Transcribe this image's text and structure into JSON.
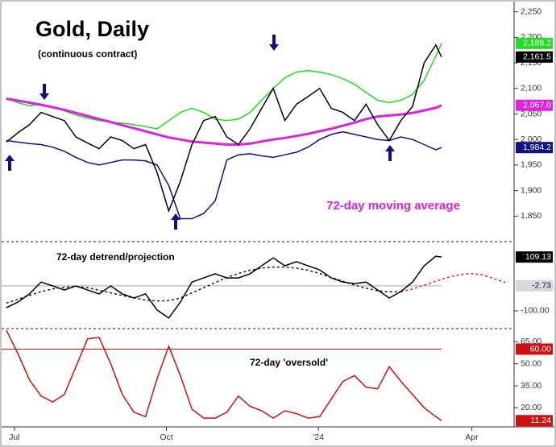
{
  "chart_data": {
    "type": "line",
    "title": "Gold, Daily",
    "subtitle": "(continuous contract)",
    "x": [
      0,
      1,
      2,
      3,
      4,
      5,
      6,
      7,
      8,
      9,
      10,
      11,
      12,
      13,
      14,
      15,
      16,
      17,
      18,
      19,
      20,
      21,
      22,
      23,
      24,
      25,
      26,
      27,
      28,
      29,
      30,
      31,
      32,
      33,
      34,
      35,
      36,
      37,
      37.5
    ],
    "xlim": [
      -0.4,
      43.75
    ],
    "xticks": [
      {
        "value": 0.7,
        "label": "Jul"
      },
      {
        "value": 13.8,
        "label": "Oct"
      },
      {
        "value": 26.9,
        "label": "'24"
      },
      {
        "value": 40.1,
        "label": "Apr"
      }
    ],
    "panels": [
      {
        "ylim": [
          1800,
          2270
        ],
        "yticks": [
          {
            "value": 1850,
            "label": "1,850"
          },
          {
            "value": 1900,
            "label": "1,900"
          },
          {
            "value": 1950,
            "label": "1,950"
          },
          {
            "value": 2000,
            "label": "2,000"
          },
          {
            "value": 2050,
            "label": "2,050"
          },
          {
            "value": 2100,
            "label": "2,100"
          },
          {
            "value": 2150,
            "label": "2,150"
          },
          {
            "value": 2200,
            "label": "2,200"
          },
          {
            "value": 2250,
            "label": "2,250"
          }
        ],
        "annotation": "72-day moving average",
        "series": [
          {
            "color": "#22dd22",
            "values": [
              2081,
              2072,
              2066,
              2069,
              2064,
              2056,
              2048,
              2042,
              2037,
              2034,
              2032,
              2029,
              2025,
              2021,
              2037,
              2053,
              2061,
              2053,
              2040,
              2037,
              2040,
              2053,
              2077,
              2100,
              2121,
              2132,
              2135,
              2132,
              2127,
              2119,
              2108,
              2092,
              2077,
              2072,
              2077,
              2088,
              2116,
              2163,
              2188.2
            ],
            "last": {
              "value": 2188.2,
              "label": "2,188.2"
            }
          },
          {
            "color": "#dd22dd",
            "width": 3,
            "values": [
              2080,
              2076,
              2072,
              2068,
              2063,
              2058,
              2052,
              2046,
              2040,
              2034,
              2028,
              2022,
              2016,
              2010,
              2004,
              2000,
              1996,
              1994,
              1992,
              1990,
              1990,
              1992,
              1996,
              2000,
              2003,
              2007,
              2011,
              2016,
              2021,
              2027,
              2033,
              2040,
              2045,
              2047,
              2049,
              2052,
              2057,
              2062,
              2067.0
            ],
            "last": {
              "value": 2067.0,
              "label": "2,067.0"
            }
          },
          {
            "color": "#101080",
            "values": [
              1998,
              1995,
              1992,
              1990,
              1985,
              1977,
              1965,
              1955,
              1950,
              1955,
              1960,
              1960,
              1958,
              1950,
              1910,
              1845,
              1845,
              1855,
              1880,
              1960,
              1970,
              1972,
              1968,
              1965,
              1970,
              1975,
              1985,
              2000,
              2010,
              2015,
              2010,
              2005,
              2000,
              1998,
              2005,
              2000,
              1990,
              1980,
              1984.2
            ],
            "last": {
              "value": 1984.2,
              "label": "1,984.2"
            }
          },
          {
            "color": "#000000",
            "values": [
              1995,
              2013,
              2029,
              2053,
              2045,
              2037,
              2005,
              1993,
              1982,
              2005,
              1998,
              1982,
              1990,
              1935,
              1860,
              1918,
              1990,
              2037,
              2045,
              2005,
              1990,
              2021,
              2061,
              2100,
              2037,
              2069,
              2084,
              2100,
              2061,
              2053,
              2037,
              2069,
              2029,
              1998,
              2037,
              2065,
              2150,
              2185,
              2161.5
            ],
            "last": {
              "value": 2161.5,
              "label": "2,161.5"
            }
          }
        ]
      },
      {
        "ylim": [
          -169,
          169
        ],
        "yticks": [
          {
            "value": -100,
            "label": "-100.00"
          }
        ],
        "annotation": "72-day detrend/projection",
        "reference": {
          "value": -2.73,
          "label": "-2.73",
          "color": "#aaaaaa"
        },
        "series": [
          {
            "color": "#101080",
            "dashed": true,
            "values": [
              -70,
              -55,
              -40,
              -25,
              -15,
              -8,
              -5,
              -10,
              -20,
              -30,
              -40,
              -50,
              -58,
              -62,
              -60,
              -50,
              -30,
              -10,
              10,
              30,
              45,
              58,
              66,
              70,
              70,
              66,
              58,
              45,
              30,
              15,
              0,
              -12,
              -22,
              -26,
              -25,
              null,
              null,
              null,
              null
            ]
          },
          {
            "color": "#dd2222",
            "dashed": true,
            "x": [
              34,
              35,
              36,
              37,
              38,
              39,
              40,
              41,
              42,
              43
            ],
            "values": [
              -25,
              -15,
              0,
              15,
              30,
              40,
              45,
              40,
              25,
              10
            ]
          },
          {
            "color": "#000000",
            "values": [
              -88,
              -66,
              -34,
              12,
              -3,
              -19,
              -3,
              -19,
              -34,
              -3,
              -34,
              -50,
              -34,
              -97,
              -128,
              -66,
              12,
              28,
              44,
              28,
              28,
              44,
              75,
              106,
              75,
              91,
              75,
              59,
              28,
              12,
              6,
              12,
              -19,
              -50,
              -25,
              12,
              75,
              112,
              109.13
            ],
            "last": {
              "value": 109.13,
              "label": "109.13"
            }
          }
        ]
      },
      {
        "ylim": [
          7,
          74
        ],
        "yticks": [
          {
            "value": 20,
            "label": "20.00"
          },
          {
            "value": 35,
            "label": "35.00"
          },
          {
            "value": 50,
            "label": "50.00"
          },
          {
            "value": 65,
            "label": "65.00"
          }
        ],
        "annotation": "72-day 'oversold'",
        "reference": {
          "value": 60,
          "label": "60.00",
          "color": "#cc1111"
        },
        "series": [
          {
            "color": "#cc1111",
            "values": [
              73,
              57,
              39,
              28,
              24,
              29,
              48,
              67,
              68,
              50,
              29,
              17,
              14,
              40,
              62,
              42,
              19,
              13,
              13,
              17,
              28,
              21,
              18,
              13,
              18,
              16,
              13,
              14,
              26,
              38,
              42,
              34,
              33,
              48,
              38,
              29,
              20,
              14,
              11.24
            ],
            "last": {
              "value": 11.24,
              "label": "11.24"
            }
          }
        ]
      }
    ]
  }
}
